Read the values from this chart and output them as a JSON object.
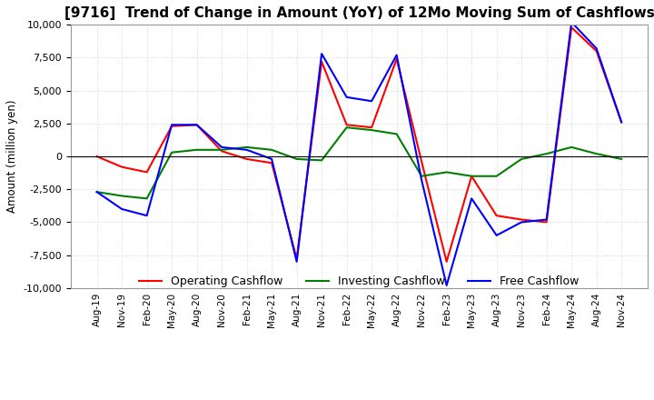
{
  "title": "[9716]  Trend of Change in Amount (YoY) of 12Mo Moving Sum of Cashflows",
  "ylabel": "Amount (million yen)",
  "ylim": [
    -10000,
    10000
  ],
  "yticks": [
    -10000,
    -7500,
    -5000,
    -2500,
    0,
    2500,
    5000,
    7500,
    10000
  ],
  "x_labels": [
    "Aug-19",
    "Nov-19",
    "Feb-20",
    "May-20",
    "Aug-20",
    "Nov-20",
    "Feb-21",
    "May-21",
    "Aug-21",
    "Nov-21",
    "Feb-22",
    "May-22",
    "Aug-22",
    "Nov-22",
    "Feb-23",
    "May-23",
    "Aug-23",
    "Nov-23",
    "Feb-24",
    "May-24",
    "Aug-24",
    "Nov-24"
  ],
  "operating": [
    0,
    -800,
    -1200,
    2300,
    2400,
    400,
    -200,
    -500,
    -7800,
    7200,
    2400,
    2200,
    7400,
    -400,
    -8000,
    -1500,
    -4500,
    -4800,
    -5000,
    9800,
    8000,
    2600
  ],
  "investing": [
    -2700,
    -3000,
    -3200,
    300,
    500,
    500,
    700,
    500,
    -200,
    -300,
    2200,
    2000,
    1700,
    -1500,
    -1200,
    -1500,
    -1500,
    -200,
    200,
    700,
    200,
    -200
  ],
  "free": [
    -2700,
    -4000,
    -4500,
    2400,
    2400,
    700,
    500,
    -200,
    -8000,
    7800,
    4500,
    4200,
    7700,
    -1800,
    -9800,
    -3200,
    -6000,
    -5000,
    -4800,
    10200,
    8200,
    2600
  ],
  "op_color": "#ff0000",
  "inv_color": "#008000",
  "free_color": "#0000ff",
  "bg_color": "#ffffff",
  "grid_color": "#cccccc",
  "title_fontsize": 11,
  "legend_labels": [
    "Operating Cashflow",
    "Investing Cashflow",
    "Free Cashflow"
  ]
}
